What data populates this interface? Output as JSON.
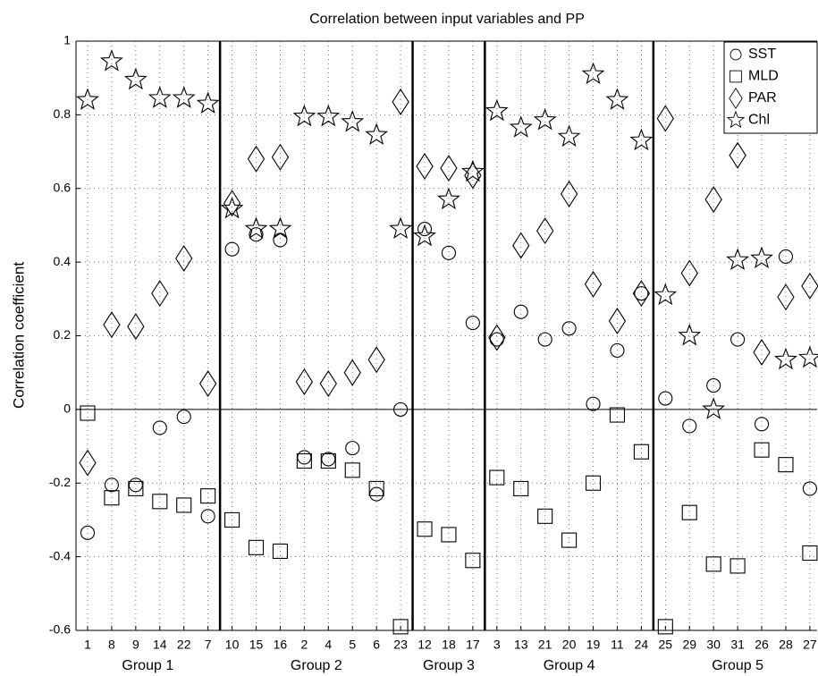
{
  "chart_data": {
    "type": "scatter",
    "title": "Correlation between input variables and PP",
    "y_label": "Correlation coefficient",
    "groups": [
      {
        "name": "Group 1",
        "categories": [
          "1",
          "8",
          "9",
          "14",
          "22",
          "7"
        ]
      },
      {
        "name": "Group 2",
        "categories": [
          "10",
          "15",
          "16",
          "2",
          "4",
          "5",
          "6",
          "23"
        ]
      },
      {
        "name": "Group 3",
        "categories": [
          "12",
          "18",
          "17"
        ]
      },
      {
        "name": "Group 4",
        "categories": [
          "3",
          "13",
          "21",
          "20",
          "19",
          "11",
          "24"
        ]
      },
      {
        "name": "Group 5",
        "categories": [
          "25",
          "29",
          "30",
          "31",
          "26",
          "28",
          "27"
        ]
      }
    ],
    "series": [
      {
        "name": "SST",
        "marker": "circle",
        "color": "#000000",
        "values": [
          -0.335,
          -0.205,
          -0.205,
          -0.05,
          -0.02,
          -0.29,
          0.435,
          0.475,
          0.46,
          -0.13,
          -0.135,
          -0.105,
          -0.23,
          0.0,
          0.49,
          0.425,
          0.235,
          0.19,
          0.265,
          0.19,
          0.22,
          0.015,
          0.16,
          0.315,
          0.03,
          -0.045,
          0.065,
          0.19,
          -0.04,
          0.415,
          -0.215
        ]
      },
      {
        "name": "MLD",
        "marker": "square",
        "color": "#000000",
        "values": [
          -0.01,
          -0.24,
          -0.215,
          -0.25,
          -0.26,
          -0.235,
          -0.3,
          -0.375,
          -0.385,
          -0.14,
          -0.14,
          -0.165,
          -0.215,
          -0.59,
          -0.325,
          -0.34,
          -0.41,
          -0.185,
          -0.215,
          -0.29,
          -0.355,
          -0.2,
          -0.015,
          -0.115,
          -0.59,
          -0.28,
          -0.42,
          -0.425,
          -0.11,
          -0.15,
          -0.39
        ]
      },
      {
        "name": "PAR",
        "marker": "diamond",
        "color": "#000000",
        "values": [
          -0.145,
          0.23,
          0.225,
          0.315,
          0.41,
          0.07,
          0.56,
          0.68,
          0.685,
          0.075,
          0.07,
          0.1,
          0.135,
          0.835,
          0.66,
          0.655,
          0.635,
          0.195,
          0.445,
          0.485,
          0.585,
          0.34,
          0.24,
          0.315,
          0.79,
          0.37,
          0.57,
          0.69,
          0.155,
          0.305,
          0.335
        ]
      },
      {
        "name": "Chl",
        "marker": "star",
        "color": "#000000",
        "values": [
          0.84,
          0.945,
          0.895,
          0.845,
          0.845,
          0.83,
          0.545,
          0.49,
          0.49,
          0.795,
          0.795,
          0.78,
          0.745,
          0.49,
          0.47,
          0.57,
          0.645,
          0.81,
          0.765,
          0.785,
          0.74,
          0.91,
          0.84,
          0.73,
          0.31,
          0.2,
          0.0,
          0.405,
          0.41,
          0.135,
          0.14
        ]
      }
    ],
    "ylim": [
      -0.6,
      1
    ],
    "yticks": [
      -0.6,
      -0.4,
      -0.2,
      0,
      0.2,
      0.4,
      0.6,
      0.8,
      1
    ],
    "grid": true,
    "legend": "upper right"
  }
}
